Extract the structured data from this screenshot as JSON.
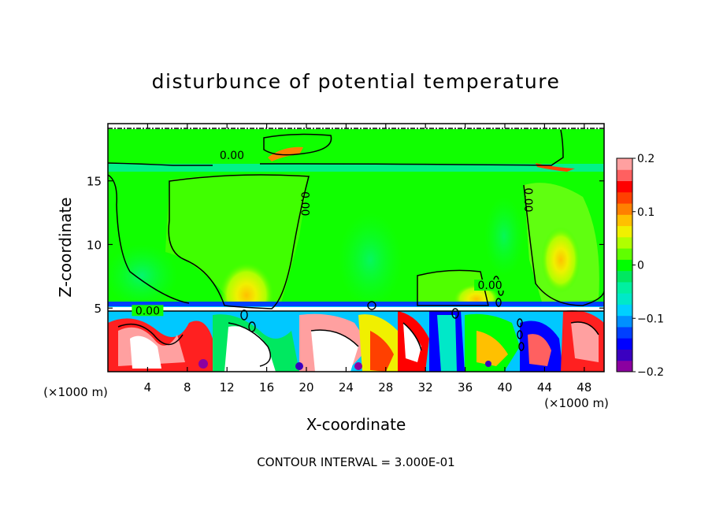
{
  "chart_data": {
    "type": "heatmap",
    "title": "disturbunce of potential temperature",
    "xlabel": "X-coordinate",
    "ylabel": "Z-coordinate",
    "x_unit_label_left": "(×1000 m)",
    "x_unit_label_right": "(×1000 m)",
    "xlim": [
      0,
      50
    ],
    "ylim": [
      0,
      19.5
    ],
    "x_ticks": [
      4,
      8,
      12,
      16,
      20,
      24,
      28,
      32,
      36,
      40,
      44,
      48
    ],
    "y_ticks": [
      5,
      10,
      15
    ],
    "colorbar": {
      "range": [
        -0.2,
        0.2
      ],
      "ticks": [
        0.2,
        0.1,
        0,
        -0.1,
        -0.2
      ],
      "tick_labels": [
        "0.2",
        "0.1",
        "0",
        "−0.1",
        "−0.2"
      ],
      "colors": [
        "#8b00a0",
        "#3a00c0",
        "#0000ff",
        "#0040ff",
        "#0090ff",
        "#00d0ff",
        "#00e8c8",
        "#00f0a0",
        "#00e860",
        "#00ff00",
        "#60ff00",
        "#b0ff00",
        "#f0f000",
        "#ffc000",
        "#ff8000",
        "#ff4000",
        "#ff0000",
        "#ff6060",
        "#ffa0a0"
      ]
    },
    "contour_labels": [
      {
        "text": "0.00",
        "x": 12.5,
        "z": 16.7
      },
      {
        "text": "0.00",
        "x": 19.5,
        "z": 13.2
      },
      {
        "text": "0.00",
        "x": 42.0,
        "z": 13.5
      },
      {
        "text": "0.00",
        "x": 38.5,
        "z": 6.5
      },
      {
        "text": "0.00",
        "x": 4.0,
        "z": 4.5
      }
    ],
    "footer": "CONTOUR INTERVAL = 3.000E-01"
  }
}
